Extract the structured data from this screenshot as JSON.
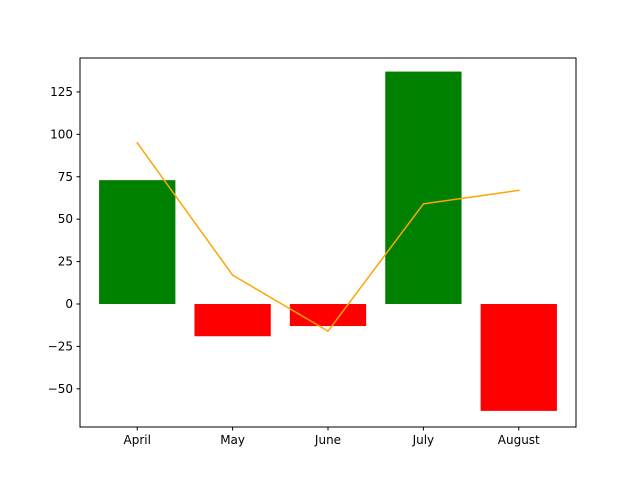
{
  "chart_data": {
    "type": "bar",
    "categories": [
      "April",
      "May",
      "June",
      "July",
      "August"
    ],
    "series": [
      {
        "type": "bar",
        "values": [
          73,
          -19,
          -13,
          137,
          -63
        ],
        "positive_color": "#008000",
        "negative_color": "#ff0000"
      },
      {
        "type": "line",
        "values": [
          95,
          17,
          -16,
          59,
          67
        ],
        "color": "#ffa500"
      }
    ],
    "ylim": [
      -72.5,
      145
    ],
    "yticks": [
      -50,
      -25,
      0,
      25,
      50,
      75,
      100,
      125
    ],
    "ytick_labels": [
      "−50",
      "−25",
      "0",
      "25",
      "50",
      "75",
      "100",
      "125"
    ],
    "grid": false
  }
}
